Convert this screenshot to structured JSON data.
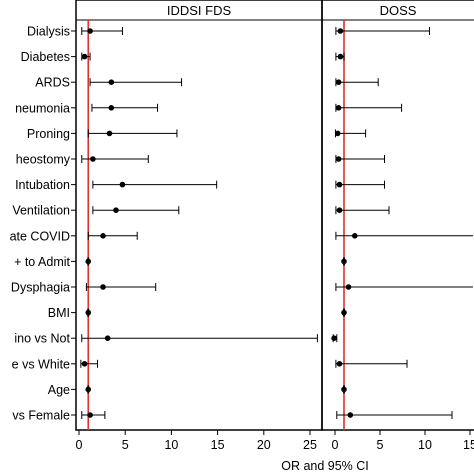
{
  "chart_data": {
    "type": "forest",
    "xlabel": "OR and 95% CI",
    "reference_line": 1,
    "reference_line_color": "#e03030",
    "categories": [
      "Dialysis",
      "Diabetes",
      "ARDS",
      "neumonia",
      "Proning",
      "heostomy",
      "Intubation",
      "Ventilation",
      "ate COVID",
      "+ to Admit",
      "Dysphagia",
      "BMI",
      "ino vs Not",
      "e vs White",
      "Age",
      "vs Female"
    ],
    "panels": [
      {
        "title": "IDDSI FDS",
        "xlim": [
          0,
          26
        ],
        "ticks": [
          0,
          5,
          10,
          15,
          20,
          25
        ],
        "series": {
          "or": [
            1.2,
            0.6,
            3.5,
            3.5,
            3.3,
            1.5,
            4.7,
            4.0,
            2.6,
            1.0,
            2.6,
            1.0,
            3.1,
            0.6,
            1.0,
            1.2
          ],
          "lower": [
            0.3,
            0.3,
            1.2,
            1.4,
            1.0,
            0.3,
            1.5,
            1.5,
            1.0,
            0.95,
            0.8,
            0.95,
            0.3,
            0.2,
            0.95,
            0.3
          ],
          "upper": [
            4.7,
            1.2,
            11.1,
            8.5,
            10.6,
            7.5,
            14.9,
            10.8,
            6.3,
            1.05,
            8.3,
            1.05,
            25.8,
            2.0,
            1.05,
            2.8
          ]
        }
      },
      {
        "title": "DOSS",
        "xlim": [
          -0.5,
          15.5
        ],
        "ticks": [
          0,
          5,
          10,
          15
        ],
        "series": {
          "or": [
            0.6,
            0.6,
            0.4,
            0.4,
            0.3,
            0.4,
            0.5,
            0.5,
            2.2,
            1.0,
            1.5,
            1.0,
            -0.1,
            0.5,
            1.0,
            1.7
          ],
          "lower": [
            0.1,
            0.1,
            0.1,
            0.1,
            0.05,
            0.1,
            0.1,
            0.1,
            0.1,
            0.95,
            0.1,
            0.95,
            -0.2,
            0.1,
            0.95,
            0.2
          ],
          "upper": [
            10.5,
            1.0,
            4.8,
            7.4,
            3.4,
            5.5,
            5.5,
            6.0,
            15.6,
            1.05,
            15.6,
            1.05,
            0.2,
            8.0,
            1.05,
            13.0
          ]
        }
      }
    ]
  },
  "colors": {
    "reference": "#e03030",
    "marker": "#000000",
    "frame": "#000000"
  }
}
